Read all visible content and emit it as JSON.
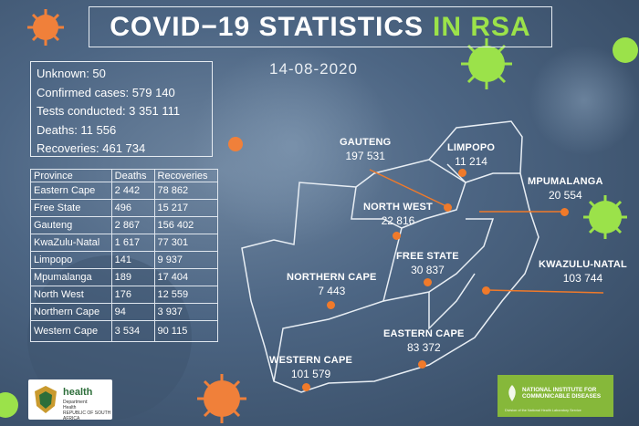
{
  "title": {
    "main": "COVID−19 STATISTICS",
    "highlight": "IN RSA"
  },
  "date": "14-08-2020",
  "summary": {
    "unknown": "Unknown: 50",
    "confirmed": "Confirmed cases: 579 140",
    "tests": "Tests conducted: 3 351 111",
    "deaths": "Deaths: 11 556",
    "recoveries": "Recoveries: 461 734"
  },
  "table": {
    "headers": [
      "Province",
      "Deaths",
      "Recoveries"
    ],
    "rows": [
      [
        "Eastern Cape",
        "2 442",
        "78 862"
      ],
      [
        "Free State",
        "496",
        "15 217"
      ],
      [
        "Gauteng",
        "2 867",
        "156 402"
      ],
      [
        "KwaZulu-Natal",
        "1 617",
        "77 301"
      ],
      [
        "Limpopo",
        "141",
        "9 937"
      ],
      [
        "Mpumalanga",
        "189",
        "17 404"
      ],
      [
        "North West",
        "176",
        "12 559"
      ],
      [
        "Northern Cape",
        "94",
        "3 937"
      ],
      [
        "Western Cape",
        "3 534",
        "90 115"
      ]
    ]
  },
  "map_labels": {
    "gauteng": {
      "name": "GAUTENG",
      "value": "197 531"
    },
    "limpopo": {
      "name": "LIMPOPO",
      "value": "11 214"
    },
    "mpumalanga": {
      "name": "MPUMALANGA",
      "value": "20 554"
    },
    "north_west": {
      "name": "NORTH WEST",
      "value": "22 816"
    },
    "free_state": {
      "name": "FREE STATE",
      "value": "30 837"
    },
    "kwazulu_natal": {
      "name": "KWAZULU-NATAL",
      "value": "103 744"
    },
    "northern_cape": {
      "name": "NORTHERN CAPE",
      "value": "7 443"
    },
    "eastern_cape": {
      "name": "EASTERN CAPE",
      "value": "83 372"
    },
    "western_cape": {
      "name": "WESTERN CAPE",
      "value": "101 579"
    }
  },
  "logos": {
    "health_word": "health",
    "health_sub1": "Department:",
    "health_sub2": "Health",
    "health_sub3": "REPUBLIC OF SOUTH AFRICA",
    "nicd_line1": "NATIONAL INSTITUTE FOR",
    "nicd_line2": "COMMUNICABLE DISEASES",
    "nicd_tagline": "Division of the National Health Laboratory Service"
  },
  "colors": {
    "accent_green": "#9be24a",
    "marker_orange": "#f07a2a",
    "nicd_green": "#86b83a"
  }
}
